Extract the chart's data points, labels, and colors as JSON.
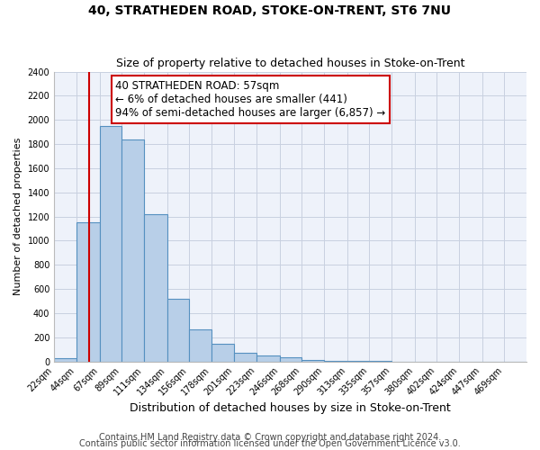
{
  "title": "40, STRATHEDEN ROAD, STOKE-ON-TRENT, ST6 7NU",
  "subtitle": "Size of property relative to detached houses in Stoke-on-Trent",
  "xlabel": "Distribution of detached houses by size in Stoke-on-Trent",
  "ylabel": "Number of detached properties",
  "bin_labels": [
    "22sqm",
    "44sqm",
    "67sqm",
    "89sqm",
    "111sqm",
    "134sqm",
    "156sqm",
    "178sqm",
    "201sqm",
    "223sqm",
    "246sqm",
    "268sqm",
    "290sqm",
    "313sqm",
    "335sqm",
    "357sqm",
    "380sqm",
    "402sqm",
    "424sqm",
    "447sqm",
    "469sqm"
  ],
  "bin_edges": [
    22,
    44,
    67,
    89,
    111,
    134,
    156,
    178,
    201,
    223,
    246,
    268,
    290,
    313,
    335,
    357,
    380,
    402,
    424,
    447,
    469
  ],
  "bar_heights": [
    25,
    1150,
    1950,
    1840,
    1220,
    520,
    265,
    148,
    75,
    48,
    38,
    10,
    5,
    3,
    2,
    1,
    1,
    0,
    0,
    0,
    0
  ],
  "bar_color": "#b8cfe8",
  "bar_edge_color": "#5590c0",
  "property_sqm": 57,
  "vline_color": "#cc0000",
  "annotation_line1": "40 STRATHEDEN ROAD: 57sqm",
  "annotation_line2": "← 6% of detached houses are smaller (441)",
  "annotation_line3": "94% of semi-detached houses are larger (6,857) →",
  "annotation_box_edge": "#cc0000",
  "ylim": [
    0,
    2400
  ],
  "yticks": [
    0,
    200,
    400,
    600,
    800,
    1000,
    1200,
    1400,
    1600,
    1800,
    2000,
    2200,
    2400
  ],
  "footer1": "Contains HM Land Registry data © Crown copyright and database right 2024.",
  "footer2": "Contains public sector information licensed under the Open Government Licence v3.0.",
  "background_color": "#eef2fa",
  "grid_color": "#c8d0e0",
  "title_fontsize": 10,
  "subtitle_fontsize": 9,
  "xlabel_fontsize": 9,
  "ylabel_fontsize": 8,
  "tick_fontsize": 7,
  "annotation_fontsize": 8.5,
  "footer_fontsize": 7
}
